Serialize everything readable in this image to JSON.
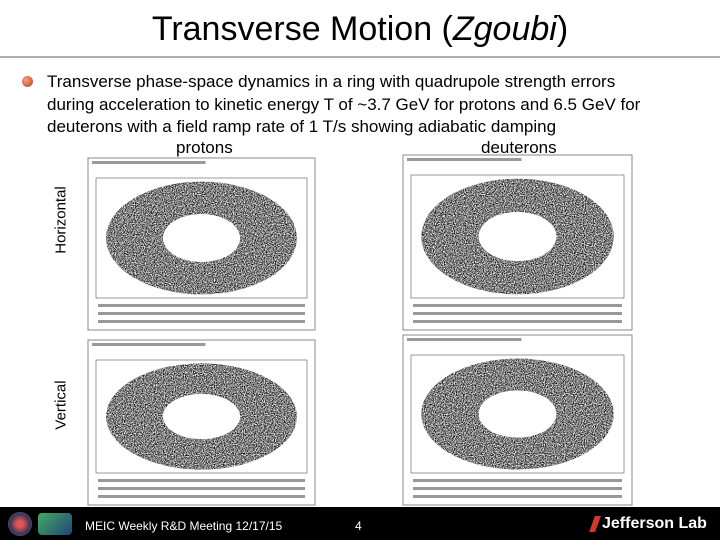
{
  "title": {
    "prefix": "Transverse Motion (",
    "emphasis": "Zgoubi",
    "suffix": ")"
  },
  "bullet": {
    "lines": [
      "Transverse phase-space dynamics in a ring with quadrupole strength errors",
      "during acceleration to kinetic energy T of ~3.7 GeV for protons and 6.5 GeV for",
      "deuterons with a field ramp rate of 1 T/s showing adiabatic damping"
    ]
  },
  "columns": [
    "protons",
    "deuterons"
  ],
  "rows": [
    "Horizontal",
    "Vertical"
  ],
  "footer": {
    "meeting": "MEIC Weekly R&D Meeting 12/17/15",
    "page": "4",
    "lab": "Jefferson Lab"
  }
}
